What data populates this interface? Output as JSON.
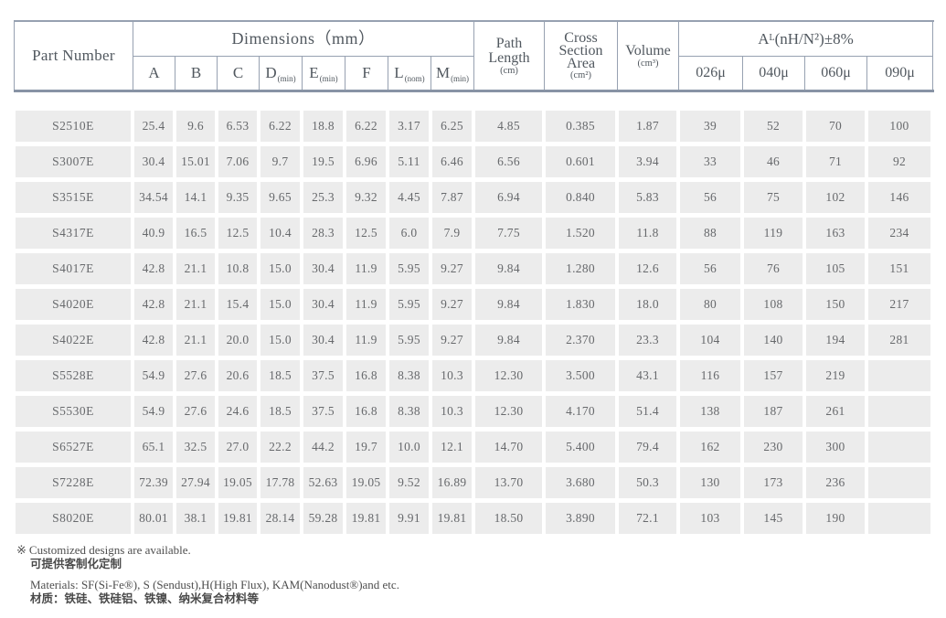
{
  "colors": {
    "border_thin": "#97a1b1",
    "border_thick": "#8893a5",
    "cell_background": "#ececec",
    "header_text": "#51585f",
    "data_text": "#67696c"
  },
  "table": {
    "header": {
      "part_number": "Part Number",
      "dimensions": "Dimensions（mm）",
      "dim_cols": [
        {
          "letter": "A",
          "sub": ""
        },
        {
          "letter": "B",
          "sub": ""
        },
        {
          "letter": "C",
          "sub": ""
        },
        {
          "letter": "D",
          "sub": "(min)"
        },
        {
          "letter": "E",
          "sub": "(min)"
        },
        {
          "letter": "F",
          "sub": ""
        },
        {
          "letter": "L",
          "sub": "(nom)"
        },
        {
          "letter": "M",
          "sub": "(min)"
        }
      ],
      "path_length": {
        "l1": "Path",
        "l2": "Length",
        "unit": "(cm)"
      },
      "cross_section": {
        "l1": "Cross",
        "l2": "Section",
        "l3": "Area",
        "unit": "(cm²)"
      },
      "volume": {
        "label": "Volume",
        "unit": "(cm³)"
      },
      "al": {
        "base": "A",
        "sub": "L",
        "rest": "(nH/N²)±8%"
      },
      "al_cols": [
        "026μ",
        "040μ",
        "060μ",
        "090μ"
      ]
    },
    "rows": [
      {
        "part": "S2510E",
        "values": [
          "25.4",
          "9.6",
          "6.53",
          "6.22",
          "18.8",
          "6.22",
          "3.17",
          "6.25",
          "4.85",
          "0.385",
          "1.87",
          "39",
          "52",
          "70",
          "100"
        ]
      },
      {
        "part": "S3007E",
        "values": [
          "30.4",
          "15.01",
          "7.06",
          "9.7",
          "19.5",
          "6.96",
          "5.11",
          "6.46",
          "6.56",
          "0.601",
          "3.94",
          "33",
          "46",
          "71",
          "92"
        ]
      },
      {
        "part": "S3515E",
        "values": [
          "34.54",
          "14.1",
          "9.35",
          "9.65",
          "25.3",
          "9.32",
          "4.45",
          "7.87",
          "6.94",
          "0.840",
          "5.83",
          "56",
          "75",
          "102",
          "146"
        ]
      },
      {
        "part": "S4317E",
        "values": [
          "40.9",
          "16.5",
          "12.5",
          "10.4",
          "28.3",
          "12.5",
          "6.0",
          "7.9",
          "7.75",
          "1.520",
          "11.8",
          "88",
          "119",
          "163",
          "234"
        ]
      },
      {
        "part": "S4017E",
        "values": [
          "42.8",
          "21.1",
          "10.8",
          "15.0",
          "30.4",
          "11.9",
          "5.95",
          "9.27",
          "9.84",
          "1.280",
          "12.6",
          "56",
          "76",
          "105",
          "151"
        ]
      },
      {
        "part": "S4020E",
        "values": [
          "42.8",
          "21.1",
          "15.4",
          "15.0",
          "30.4",
          "11.9",
          "5.95",
          "9.27",
          "9.84",
          "1.830",
          "18.0",
          "80",
          "108",
          "150",
          "217"
        ]
      },
      {
        "part": "S4022E",
        "values": [
          "42.8",
          "21.1",
          "20.0",
          "15.0",
          "30.4",
          "11.9",
          "5.95",
          "9.27",
          "9.84",
          "2.370",
          "23.3",
          "104",
          "140",
          "194",
          "281"
        ]
      },
      {
        "part": "S5528E",
        "values": [
          "54.9",
          "27.6",
          "20.6",
          "18.5",
          "37.5",
          "16.8",
          "8.38",
          "10.3",
          "12.30",
          "3.500",
          "43.1",
          "116",
          "157",
          "219",
          ""
        ]
      },
      {
        "part": "S5530E",
        "values": [
          "54.9",
          "27.6",
          "24.6",
          "18.5",
          "37.5",
          "16.8",
          "8.38",
          "10.3",
          "12.30",
          "4.170",
          "51.4",
          "138",
          "187",
          "261",
          ""
        ]
      },
      {
        "part": "S6527E",
        "values": [
          "65.1",
          "32.5",
          "27.0",
          "22.2",
          "44.2",
          "19.7",
          "10.0",
          "12.1",
          "14.70",
          "5.400",
          "79.4",
          "162",
          "230",
          "300",
          ""
        ]
      },
      {
        "part": "S7228E",
        "values": [
          "72.39",
          "27.94",
          "19.05",
          "17.78",
          "52.63",
          "19.05",
          "9.52",
          "16.89",
          "13.70",
          "3.680",
          "50.3",
          "130",
          "173",
          "236",
          ""
        ]
      },
      {
        "part": "S8020E",
        "values": [
          "80.01",
          "38.1",
          "19.81",
          "28.14",
          "59.28",
          "19.81",
          "9.91",
          "19.81",
          "18.50",
          "3.890",
          "72.1",
          "103",
          "145",
          "190",
          ""
        ]
      }
    ]
  },
  "footer": {
    "note_symbol": "※",
    "note_en": "Customized designs are available.",
    "note_cn": "可提供客制化定制",
    "materials_en": "Materials: SF(Si-Fe®), S (Sendust),H(High Flux), KAM(Nanodust®)and etc.",
    "materials_cn": "材质：铁硅、铁硅铝、铁镍、纳米复合材料等"
  }
}
